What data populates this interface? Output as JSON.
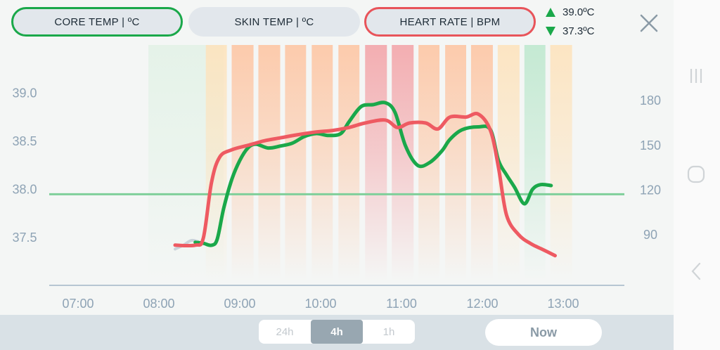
{
  "tabs": {
    "core_temp": "CORE TEMP | ºC",
    "skin_temp": "SKIN TEMP | ºC",
    "heart_rate": "HEART RATE | BPM"
  },
  "summary": {
    "max": "39.0ºC",
    "min": "37.3ºC"
  },
  "range_buttons": {
    "h24": "24h",
    "h4": "4h",
    "h1": "1h",
    "selected": "4h"
  },
  "now_button": "Now",
  "colors": {
    "core": "#1aa84a",
    "heart": "#ee5a62",
    "threshold": "#7fcf9a",
    "axis": "#b6c6d2",
    "label": "#8ea3b5"
  },
  "chart_data": {
    "type": "line",
    "x_ticks": [
      "07:00",
      "08:00",
      "09:00",
      "10:00",
      "11:00",
      "12:00",
      "13:00"
    ],
    "y_left_ticks": [
      "37.5",
      "38.0",
      "38.5",
      "39.0"
    ],
    "y_left_range": [
      37.0,
      39.2
    ],
    "y_right_ticks": [
      "90",
      "120",
      "150",
      "180"
    ],
    "y_right_range": [
      58,
      198
    ],
    "threshold": 37.95,
    "series": [
      {
        "key": "core_temp",
        "points": [
          [
            8.45,
            37.45
          ],
          [
            8.55,
            37.44
          ],
          [
            8.65,
            37.42
          ],
          [
            8.72,
            37.48
          ],
          [
            8.8,
            37.8
          ],
          [
            8.9,
            38.1
          ],
          [
            9.0,
            38.3
          ],
          [
            9.1,
            38.43
          ],
          [
            9.2,
            38.47
          ],
          [
            9.35,
            38.43
          ],
          [
            9.5,
            38.45
          ],
          [
            9.65,
            38.48
          ],
          [
            9.8,
            38.55
          ],
          [
            9.95,
            38.58
          ],
          [
            10.1,
            38.56
          ],
          [
            10.25,
            38.58
          ],
          [
            10.35,
            38.7
          ],
          [
            10.5,
            38.86
          ],
          [
            10.65,
            38.88
          ],
          [
            10.8,
            38.9
          ],
          [
            10.92,
            38.8
          ],
          [
            11.05,
            38.45
          ],
          [
            11.2,
            38.25
          ],
          [
            11.35,
            38.28
          ],
          [
            11.5,
            38.4
          ],
          [
            11.6,
            38.52
          ],
          [
            11.75,
            38.62
          ],
          [
            11.95,
            38.65
          ],
          [
            12.1,
            38.62
          ],
          [
            12.2,
            38.3
          ],
          [
            12.3,
            38.15
          ],
          [
            12.4,
            38.02
          ],
          [
            12.52,
            37.85
          ],
          [
            12.62,
            38.0
          ],
          [
            12.72,
            38.05
          ],
          [
            12.85,
            38.04
          ]
        ]
      },
      {
        "key": "heart_rate",
        "points": [
          [
            8.2,
            83
          ],
          [
            8.45,
            83
          ],
          [
            8.55,
            88
          ],
          [
            8.65,
            125
          ],
          [
            8.75,
            142
          ],
          [
            8.9,
            147
          ],
          [
            9.1,
            150
          ],
          [
            9.3,
            153
          ],
          [
            9.5,
            155
          ],
          [
            9.7,
            157
          ],
          [
            9.95,
            159
          ],
          [
            10.15,
            160
          ],
          [
            10.35,
            162
          ],
          [
            10.55,
            165
          ],
          [
            10.8,
            167
          ],
          [
            10.95,
            162
          ],
          [
            11.1,
            165
          ],
          [
            11.3,
            165
          ],
          [
            11.45,
            161
          ],
          [
            11.6,
            169
          ],
          [
            11.8,
            169
          ],
          [
            11.95,
            171
          ],
          [
            12.1,
            160
          ],
          [
            12.2,
            135
          ],
          [
            12.3,
            103
          ],
          [
            12.45,
            90
          ],
          [
            12.6,
            84
          ],
          [
            12.75,
            80
          ],
          [
            12.9,
            76
          ]
        ]
      }
    ],
    "intensity_bars": [
      {
        "from": 8.58,
        "to": 8.84,
        "level": 1
      },
      {
        "from": 8.9,
        "to": 9.17,
        "level": 2
      },
      {
        "from": 9.23,
        "to": 9.5,
        "level": 2
      },
      {
        "from": 9.56,
        "to": 9.82,
        "level": 2
      },
      {
        "from": 9.89,
        "to": 10.15,
        "level": 2
      },
      {
        "from": 10.22,
        "to": 10.48,
        "level": 2
      },
      {
        "from": 10.55,
        "to": 10.82,
        "level": 3
      },
      {
        "from": 10.88,
        "to": 11.15,
        "level": 3
      },
      {
        "from": 11.21,
        "to": 11.47,
        "level": 2
      },
      {
        "from": 11.54,
        "to": 11.8,
        "level": 2
      },
      {
        "from": 11.86,
        "to": 12.13,
        "level": 2
      },
      {
        "from": 12.19,
        "to": 12.46,
        "level": 1
      },
      {
        "from": 12.52,
        "to": 12.78,
        "level": 0
      },
      {
        "from": 12.84,
        "to": 13.11,
        "level": 1
      }
    ],
    "background_band": {
      "from": 7.87,
      "to": 8.8
    },
    "grey_tail": [
      [
        8.2,
        37.38
      ],
      [
        8.3,
        37.42
      ],
      [
        8.4,
        37.47
      ],
      [
        8.48,
        37.46
      ]
    ]
  }
}
